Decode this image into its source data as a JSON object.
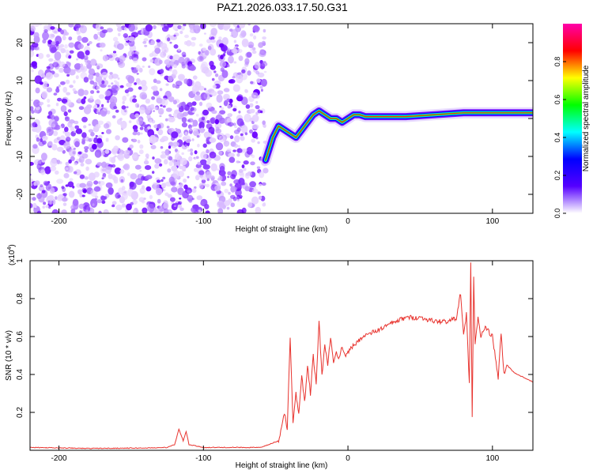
{
  "figure": {
    "title": "PAZ1.2026.033.17.50.G31"
  },
  "chart_data": [
    {
      "type": "heatmap",
      "xlabel": "Height of straight line (km)",
      "ylabel": "Frequency (Hz)",
      "xlim": [
        -220,
        128
      ],
      "ylim": [
        -25,
        25
      ],
      "xticks": [
        -200,
        -100,
        0,
        100
      ],
      "yticks": [
        -20,
        -10,
        0,
        10,
        20
      ],
      "colorbar": {
        "label": "Normalized spectral amplitude",
        "ticks": [
          0.0,
          0.2,
          0.4,
          0.6,
          0.8
        ],
        "range": [
          0,
          1
        ],
        "colors": [
          "#ffffff",
          "#5500ff",
          "#0000ff",
          "#00ffff",
          "#00ff00",
          "#ffff00",
          "#ff0000",
          "#ff00aa"
        ]
      },
      "noise_region_x": [
        -220,
        -57
      ],
      "signal_track": {
        "x": [
          -57,
          -52,
          -48,
          -44,
          -40,
          -36,
          -32,
          -28,
          -24,
          -20,
          -16,
          -12,
          -8,
          -4,
          0,
          4,
          8,
          12,
          20,
          40,
          60,
          80,
          100,
          128
        ],
        "y": [
          -11,
          -5,
          -2,
          -3,
          -4,
          -5,
          -3,
          -1,
          1,
          2,
          1,
          0,
          0,
          -1,
          0,
          1,
          1,
          0.5,
          0.5,
          0.5,
          1,
          1.5,
          1.5,
          1.5
        ]
      },
      "grid": false
    },
    {
      "type": "line",
      "xlabel": "Height of straight line (km)",
      "ylabel": "SNR (10 * v/v)",
      "y_multiplier": "(x10",
      "y_multiplier_exp": "4",
      "xlim": [
        -220,
        128
      ],
      "ylim": [
        0,
        1.0
      ],
      "xticks": [
        -200,
        -100,
        0,
        100
      ],
      "yticks": [
        0.2,
        0.4,
        0.6,
        0.8,
        1.0
      ],
      "series": [
        {
          "color": "#e8332e",
          "x": [
            -220,
            -180,
            -140,
            -125,
            -120,
            -117,
            -114,
            -112,
            -110,
            -100,
            -60,
            -48,
            -44,
            -42,
            -40,
            -38,
            -36,
            -34,
            -32,
            -30,
            -28,
            -26,
            -24,
            -22,
            -20,
            -18,
            -16,
            -14,
            -12,
            -10,
            -8,
            -6,
            -4,
            -2,
            0,
            10,
            20,
            30,
            40,
            50,
            60,
            70,
            75,
            78,
            80,
            82,
            84,
            85,
            86,
            87,
            88,
            90,
            92,
            95,
            100,
            104,
            106,
            108,
            110,
            115,
            120,
            128
          ],
          "y": [
            0.015,
            0.01,
            0.012,
            0.015,
            0.03,
            0.11,
            0.05,
            0.1,
            0.03,
            0.015,
            0.015,
            0.05,
            0.2,
            0.1,
            0.6,
            0.15,
            0.3,
            0.2,
            0.4,
            0.25,
            0.45,
            0.3,
            0.5,
            0.35,
            0.68,
            0.4,
            0.55,
            0.45,
            0.6,
            0.45,
            0.52,
            0.48,
            0.55,
            0.5,
            0.52,
            0.6,
            0.63,
            0.67,
            0.7,
            0.7,
            0.68,
            0.68,
            0.7,
            0.83,
            0.6,
            0.72,
            0.35,
            1.0,
            0.17,
            0.92,
            0.55,
            0.7,
            0.6,
            0.65,
            0.6,
            0.38,
            0.62,
            0.4,
            0.45,
            0.41,
            0.39,
            0.36
          ]
        }
      ],
      "grid": false
    }
  ]
}
